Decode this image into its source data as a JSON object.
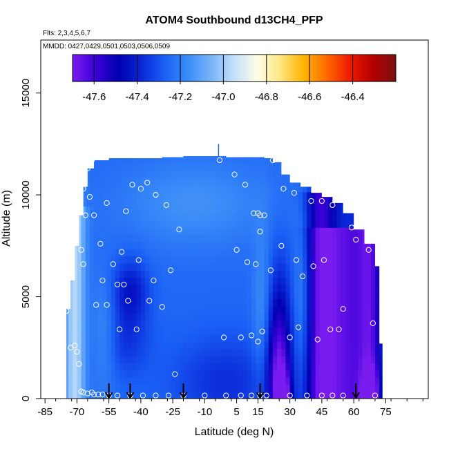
{
  "chart_data": {
    "type": "heatmap",
    "title": "ATOM4 Southbound d13CH4_PFP",
    "flights_note": "Flts: 2,3,4,5,6,7",
    "dates_note": "MMDD: 0427,0429,0501,0503,0506,0509",
    "xlabel": "Latitude (deg N)",
    "ylabel": "Altitude (m)",
    "xlim": [
      -87,
      95
    ],
    "ylim": [
      0,
      17600
    ],
    "x_ticks": [
      -85,
      -70,
      -55,
      -40,
      -25,
      -10,
      5,
      15,
      30,
      45,
      60,
      75
    ],
    "y_ticks": [
      0,
      5000,
      10000,
      15000
    ],
    "colorbar": {
      "range": [
        -47.7,
        -46.2
      ],
      "ticks": [
        "-47.6",
        "-47.4",
        "-47.2",
        "-47.0",
        "-46.8",
        "-46.6",
        "-46.4"
      ],
      "tick_values": [
        -47.6,
        -47.4,
        -47.2,
        -47.0,
        -46.8,
        -46.6,
        -46.4
      ],
      "colors": [
        "#7a1cf0",
        "#3a00d8",
        "#0000b0",
        "#0a28d8",
        "#1a60f5",
        "#3a8cf8",
        "#78b4f8",
        "#c4e0fc",
        "#fffde8",
        "#ffe680",
        "#ffb400",
        "#ff6a00",
        "#ee1a00",
        "#b40000",
        "#7a1010"
      ]
    },
    "arrows_latitude": [
      -55,
      -45,
      -20,
      16,
      61
    ],
    "envelope": {
      "lats": [
        -75,
        -73,
        -71,
        -69,
        -67,
        -65,
        -62,
        -55,
        -45,
        -30,
        -20,
        -10,
        0,
        10,
        18,
        22,
        26,
        30,
        35,
        40,
        45,
        50,
        55,
        60,
        65,
        70,
        72
      ],
      "tops": [
        4400,
        5800,
        7500,
        9000,
        10400,
        11300,
        11700,
        11800,
        11800,
        11850,
        11900,
        11900,
        11850,
        11850,
        11800,
        11600,
        11000,
        10600,
        10400,
        10100,
        9900,
        9600,
        9100,
        8300,
        7600,
        6500,
        2700
      ]
    },
    "samples": [
      {
        "lat": -73,
        "alt": 2500
      },
      {
        "lat": -71,
        "alt": 2600
      },
      {
        "lat": -70,
        "alt": 2300
      },
      {
        "lat": -69,
        "alt": 1700
      },
      {
        "lat": -68,
        "alt": 350
      },
      {
        "lat": -67,
        "alt": 300
      },
      {
        "lat": -65,
        "alt": 250
      },
      {
        "lat": -63,
        "alt": 300
      },
      {
        "lat": -62,
        "alt": 200
      },
      {
        "lat": -60,
        "alt": 200
      },
      {
        "lat": -58,
        "alt": 200
      },
      {
        "lat": -55,
        "alt": 150
      },
      {
        "lat": -51,
        "alt": 150
      },
      {
        "lat": -45,
        "alt": 150
      },
      {
        "lat": -39,
        "alt": 150
      },
      {
        "lat": -33,
        "alt": 150
      },
      {
        "lat": -27,
        "alt": 150
      },
      {
        "lat": -20,
        "alt": 150
      },
      {
        "lat": -10,
        "alt": 150
      },
      {
        "lat": 0,
        "alt": 150
      },
      {
        "lat": 7,
        "alt": 150
      },
      {
        "lat": 12,
        "alt": 150
      },
      {
        "lat": 16,
        "alt": 150
      },
      {
        "lat": 19,
        "alt": 150
      },
      {
        "lat": 30,
        "alt": 150
      },
      {
        "lat": 38,
        "alt": 150
      },
      {
        "lat": 45,
        "alt": 150
      },
      {
        "lat": 50,
        "alt": 150
      },
      {
        "lat": 55,
        "alt": 150
      },
      {
        "lat": 70,
        "alt": 150
      },
      {
        "lat": -75,
        "alt": 4300
      },
      {
        "lat": -67,
        "alt": 6600
      },
      {
        "lat": -68,
        "alt": 7300
      },
      {
        "lat": -66,
        "alt": 9000
      },
      {
        "lat": -67,
        "alt": 10300
      },
      {
        "lat": -64,
        "alt": 9900
      },
      {
        "lat": -65,
        "alt": 11300
      },
      {
        "lat": -63,
        "alt": 11700
      },
      {
        "lat": -62,
        "alt": 9000
      },
      {
        "lat": -61,
        "alt": 4600
      },
      {
        "lat": -59,
        "alt": 7600
      },
      {
        "lat": -58,
        "alt": 5800
      },
      {
        "lat": -56,
        "alt": 9600
      },
      {
        "lat": -56,
        "alt": 4600
      },
      {
        "lat": -53,
        "alt": 6600
      },
      {
        "lat": -51,
        "alt": 5600
      },
      {
        "lat": -50,
        "alt": 3400
      },
      {
        "lat": -49,
        "alt": 7200
      },
      {
        "lat": -48,
        "alt": 5600
      },
      {
        "lat": -47,
        "alt": 9200
      },
      {
        "lat": -46,
        "alt": 4800
      },
      {
        "lat": -44,
        "alt": 10500
      },
      {
        "lat": -42,
        "alt": 3400
      },
      {
        "lat": -41,
        "alt": 6800
      },
      {
        "lat": -40,
        "alt": 10300
      },
      {
        "lat": -37,
        "alt": 10600
      },
      {
        "lat": -36,
        "alt": 4800
      },
      {
        "lat": -34,
        "alt": 5800
      },
      {
        "lat": -33,
        "alt": 10000
      },
      {
        "lat": -30,
        "alt": 4500
      },
      {
        "lat": -28,
        "alt": 9500
      },
      {
        "lat": -26,
        "alt": 6300
      },
      {
        "lat": -24,
        "alt": 1200
      },
      {
        "lat": -22,
        "alt": 8300
      },
      {
        "lat": -3,
        "alt": 11700
      },
      {
        "lat": -1,
        "alt": 3000
      },
      {
        "lat": 4,
        "alt": 11000
      },
      {
        "lat": 5,
        "alt": 7300
      },
      {
        "lat": 7,
        "alt": 3000
      },
      {
        "lat": 9,
        "alt": 10500
      },
      {
        "lat": 10,
        "alt": 6700
      },
      {
        "lat": 12,
        "alt": 3100
      },
      {
        "lat": 13,
        "alt": 9100
      },
      {
        "lat": 14,
        "alt": 6600
      },
      {
        "lat": 15,
        "alt": 9100
      },
      {
        "lat": 15,
        "alt": 2800
      },
      {
        "lat": 16,
        "alt": 8200
      },
      {
        "lat": 16,
        "alt": 9000
      },
      {
        "lat": 17,
        "alt": 3300
      },
      {
        "lat": 18,
        "alt": 9000
      },
      {
        "lat": 21,
        "alt": 6300
      },
      {
        "lat": 22,
        "alt": 11700
      },
      {
        "lat": 26,
        "alt": 7500
      },
      {
        "lat": 27,
        "alt": 10300
      },
      {
        "lat": 30,
        "alt": 3000
      },
      {
        "lat": 32,
        "alt": 10100
      },
      {
        "lat": 33,
        "alt": 6800
      },
      {
        "lat": 34,
        "alt": 3500
      },
      {
        "lat": 36,
        "alt": 6000
      },
      {
        "lat": 40,
        "alt": 9700
      },
      {
        "lat": 41,
        "alt": 6500
      },
      {
        "lat": 43,
        "alt": 2900
      },
      {
        "lat": 45,
        "alt": 9700
      },
      {
        "lat": 46,
        "alt": 6800
      },
      {
        "lat": 49,
        "alt": 3400
      },
      {
        "lat": 50,
        "alt": 9500
      },
      {
        "lat": 53,
        "alt": 3400
      },
      {
        "lat": 55,
        "alt": 4400
      },
      {
        "lat": 59,
        "alt": 8400
      },
      {
        "lat": 61,
        "alt": 7800
      },
      {
        "lat": 67,
        "alt": 7300
      },
      {
        "lat": 69,
        "alt": 3700
      }
    ]
  }
}
